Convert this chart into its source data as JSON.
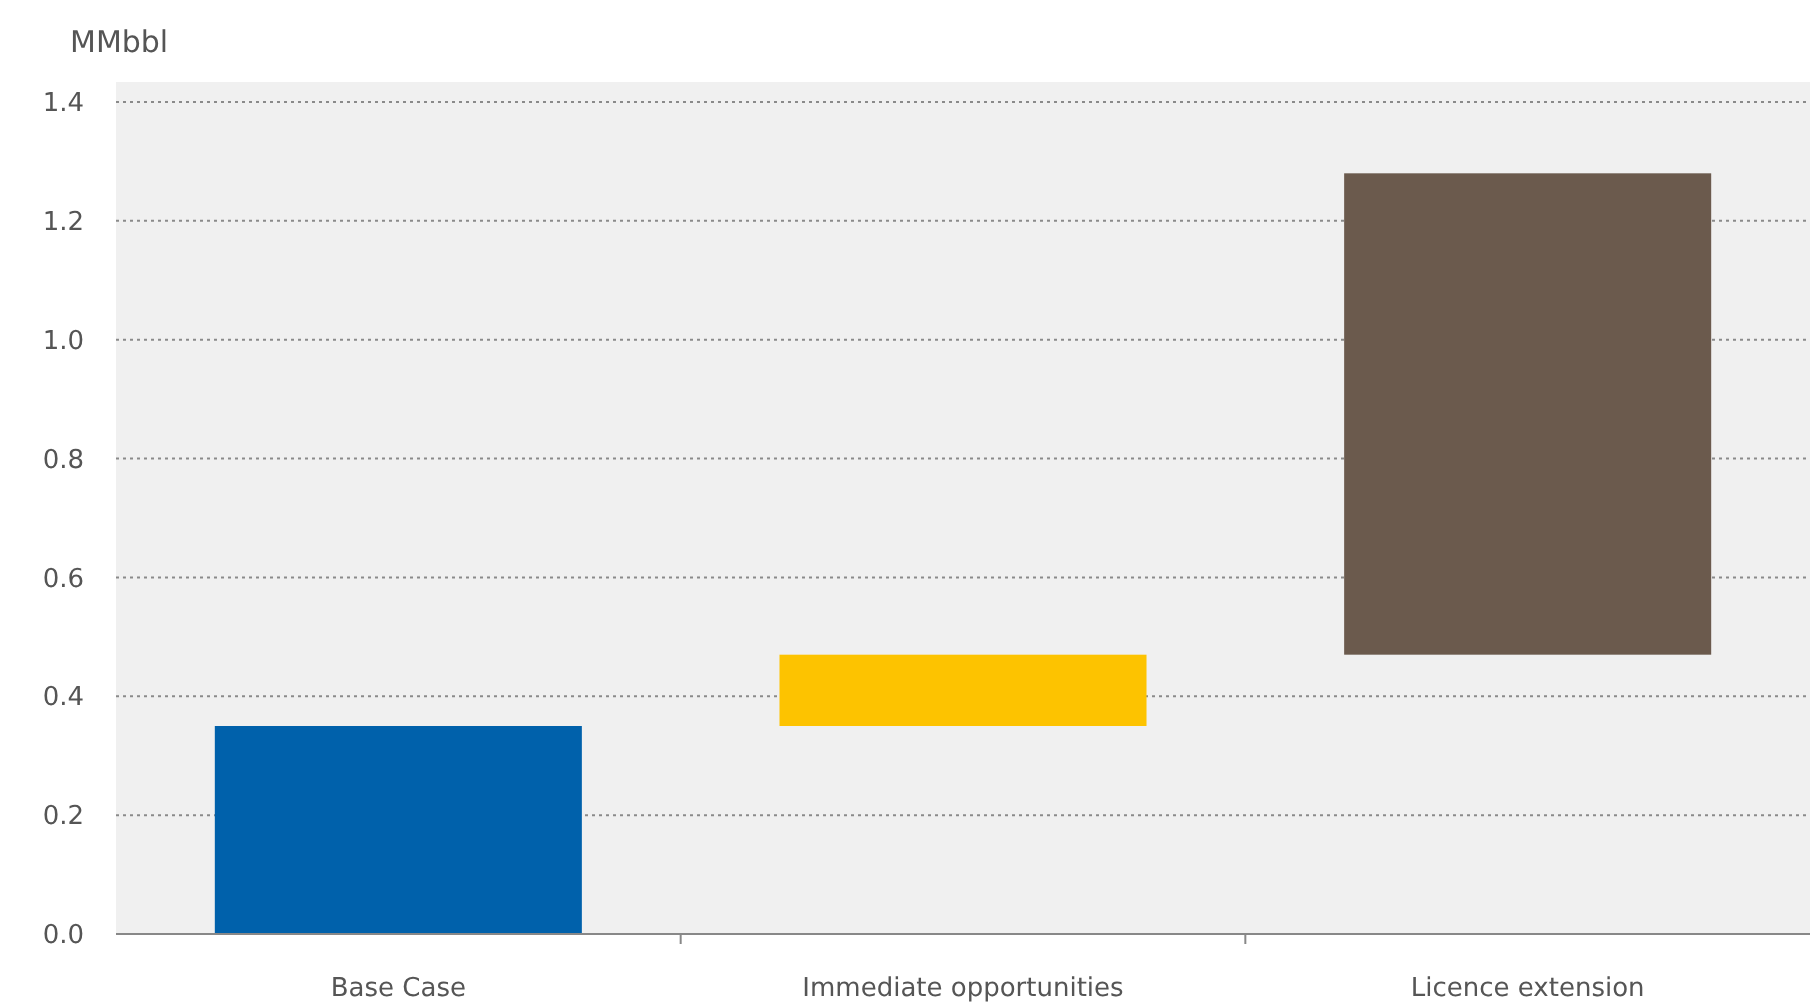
{
  "chart_data": {
    "type": "bar",
    "ylabel": "MMbbl",
    "categories": [
      "Base Case",
      "Immediate opportunities",
      "Licence extension"
    ],
    "values": [
      0.35,
      0.12,
      0.81
    ],
    "base": [
      0,
      0.35,
      0.47
    ],
    "colors": [
      "#0061ab",
      "#fdc300",
      "#6b5a4d"
    ],
    "ylim": [
      0,
      1.4
    ],
    "yticks": [
      {
        "value": 0,
        "label": "0.0"
      },
      0.2,
      0.4,
      0.6,
      0.8,
      {
        "value": 1,
        "label": "1.0"
      },
      1.2,
      1.4
    ],
    "grid": "y"
  }
}
